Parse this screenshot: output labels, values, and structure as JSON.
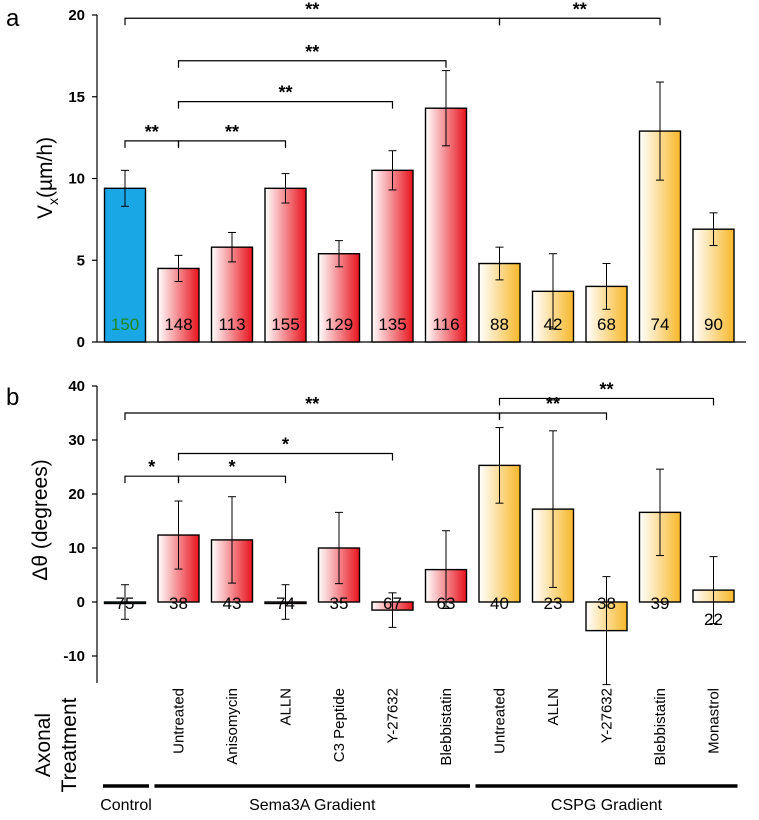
{
  "chart_data": [
    {
      "panel": "a",
      "type": "bar",
      "ylabel_main": "V",
      "ylabel_sub": "x",
      "ylabel_tail": "(µm/h)",
      "ylim": [
        0,
        20
      ],
      "yticks": [
        "0",
        "5",
        "10",
        "15",
        "20"
      ],
      "bars": [
        {
          "value": 9.4,
          "err": 1.1,
          "n": "150",
          "group": "control"
        },
        {
          "value": 4.5,
          "err": 0.8,
          "n": "148",
          "group": "sema"
        },
        {
          "value": 5.8,
          "err": 0.9,
          "n": "113",
          "group": "sema"
        },
        {
          "value": 9.4,
          "err": 0.9,
          "n": "155",
          "group": "sema"
        },
        {
          "value": 5.4,
          "err": 0.8,
          "n": "129",
          "group": "sema"
        },
        {
          "value": 10.5,
          "err": 1.2,
          "n": "135",
          "group": "sema"
        },
        {
          "value": 14.3,
          "err": 2.3,
          "n": "116",
          "group": "sema"
        },
        {
          "value": 4.8,
          "err": 1.0,
          "n": "88",
          "group": "cspg"
        },
        {
          "value": 3.1,
          "err": 2.3,
          "n": "42",
          "group": "cspg"
        },
        {
          "value": 3.4,
          "err": 1.4,
          "n": "68",
          "group": "cspg"
        },
        {
          "value": 12.9,
          "err": 3.0,
          "n": "74",
          "group": "cspg"
        },
        {
          "value": 6.9,
          "err": 1.0,
          "n": "90",
          "group": "cspg"
        }
      ],
      "significance": [
        {
          "from": 0,
          "to": 7,
          "label": "**",
          "y": 19.8
        },
        {
          "from": 7,
          "to": 10,
          "label": "**",
          "y": 19.8
        },
        {
          "from": 1,
          "to": 6,
          "label": "**",
          "y": 17.2
        },
        {
          "from": 1,
          "to": 5,
          "label": "**",
          "y": 14.7
        },
        {
          "from": 0,
          "to": 1,
          "label": "**",
          "y": 12.3
        },
        {
          "from": 1,
          "to": 3,
          "label": "**",
          "y": 12.3
        }
      ]
    },
    {
      "panel": "b",
      "type": "bar",
      "ylabel": "Δθ (degrees)",
      "ylim": [
        -15,
        40
      ],
      "yticks": [
        "-10",
        "0",
        "10",
        "20",
        "30",
        "40"
      ],
      "bars": [
        {
          "value": 0,
          "err": 3.2,
          "n": "75",
          "group": "control"
        },
        {
          "value": 12.4,
          "err": 6.3,
          "n": "38",
          "group": "sema"
        },
        {
          "value": 11.5,
          "err": 8.0,
          "n": "43",
          "group": "sema"
        },
        {
          "value": 0,
          "err": 3.2,
          "n": "74",
          "group": "sema"
        },
        {
          "value": 10.0,
          "err": 6.6,
          "n": "35",
          "group": "sema"
        },
        {
          "value": -1.5,
          "err": 3.2,
          "n": "67",
          "group": "sema"
        },
        {
          "value": 6.0,
          "err": 7.2,
          "n": "63",
          "group": "sema"
        },
        {
          "value": 25.3,
          "err": 7.0,
          "n": "40",
          "group": "cspg"
        },
        {
          "value": 17.2,
          "err": 14.5,
          "n": "23",
          "group": "cspg"
        },
        {
          "value": -5.3,
          "err": 10.0,
          "n": "38",
          "group": "cspg"
        },
        {
          "value": 16.6,
          "err": 8.0,
          "n": "39",
          "group": "cspg"
        },
        {
          "value": 2.2,
          "err": 6.2,
          "n": "22",
          "group": "cspg"
        }
      ],
      "significance": [
        {
          "from": 7,
          "to": 11,
          "label": "**",
          "y": 37.7
        },
        {
          "from": 0,
          "to": 7,
          "label": "**",
          "y": 35.0
        },
        {
          "from": 7,
          "to": 9,
          "label": "**",
          "y": 35.0
        },
        {
          "from": 1,
          "to": 5,
          "label": "*",
          "y": 27.5
        },
        {
          "from": 0,
          "to": 1,
          "label": "*",
          "y": 23.3
        },
        {
          "from": 1,
          "to": 3,
          "label": "*",
          "y": 23.3
        }
      ]
    }
  ],
  "categories": [
    "",
    "Untreated",
    "Anisomycin",
    "ALLN",
    "C3 Peptide",
    "Y-27632",
    "Blebbistatin",
    "Untreated",
    "ALLN",
    "Y-27632",
    "Blebbistatin",
    "Monastrol"
  ],
  "axis_title_line1": "Axonal",
  "axis_title_line2": "Treatment",
  "groups": [
    {
      "label": "Control",
      "from": 0,
      "to": 0
    },
    {
      "label": "Sema3A Gradient",
      "from": 1,
      "to": 6
    },
    {
      "label": "CSPG Gradient",
      "from": 7,
      "to": 11
    }
  ],
  "colors": {
    "control": "#1aa7e6",
    "sema": "#e8121c",
    "cspg": "#f7b82a",
    "control_n_label": "#1f8a1f"
  }
}
